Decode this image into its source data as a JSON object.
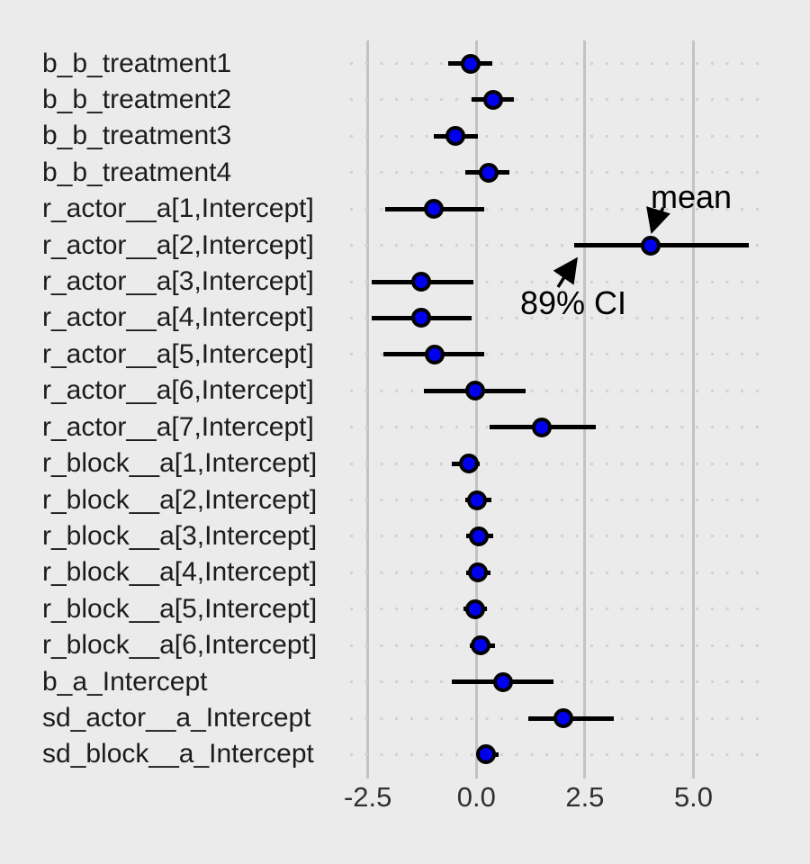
{
  "chart_data": {
    "type": "scatter",
    "subtype": "coefficient_forest_plot_with_intervals",
    "title": "",
    "xlabel": "",
    "ylabel": "",
    "xlim": [
      -3.0,
      7.0
    ],
    "x_tick_values": [
      -2.5,
      0.0,
      2.5,
      5.0
    ],
    "x_tick_labels": [
      "-2.5",
      "0.0",
      "2.5",
      "5.0"
    ],
    "grid": "vertical solid gridlines at ticks; dotted horizontal guide per row",
    "legend": "none",
    "ci_level": "89%",
    "point_estimate": "mean",
    "parameters": [
      {
        "name": "b_b_treatment1",
        "mean": -0.14,
        "lower": -0.64,
        "upper": 0.36
      },
      {
        "name": "b_b_treatment2",
        "mean": 0.39,
        "lower": -0.11,
        "upper": 0.86
      },
      {
        "name": "b_b_treatment3",
        "mean": -0.48,
        "lower": -0.98,
        "upper": 0.03
      },
      {
        "name": "b_b_treatment4",
        "mean": 0.29,
        "lower": -0.25,
        "upper": 0.76
      },
      {
        "name": "r_actor__a[1,Intercept]",
        "mean": -0.99,
        "lower": -2.1,
        "upper": 0.19
      },
      {
        "name": "r_actor__a[2,Intercept]",
        "mean": 4.02,
        "lower": 2.26,
        "upper": 6.27
      },
      {
        "name": "r_actor__a[3,Intercept]",
        "mean": -1.27,
        "lower": -2.42,
        "upper": -0.07
      },
      {
        "name": "r_actor__a[4,Intercept]",
        "mean": -1.27,
        "lower": -2.42,
        "upper": -0.11
      },
      {
        "name": "r_actor__a[5,Intercept]",
        "mean": -0.97,
        "lower": -2.14,
        "upper": 0.19
      },
      {
        "name": "r_actor__a[6,Intercept]",
        "mean": -0.02,
        "lower": -1.2,
        "upper": 1.14
      },
      {
        "name": "r_actor__a[7,Intercept]",
        "mean": 1.51,
        "lower": 0.3,
        "upper": 2.75
      },
      {
        "name": "r_block__a[1,Intercept]",
        "mean": -0.17,
        "lower": -0.57,
        "upper": 0.08
      },
      {
        "name": "r_block__a[2,Intercept]",
        "mean": 0.01,
        "lower": -0.26,
        "upper": 0.35
      },
      {
        "name": "r_block__a[3,Intercept]",
        "mean": 0.05,
        "lower": -0.23,
        "upper": 0.38
      },
      {
        "name": "r_block__a[4,Intercept]",
        "mean": 0.03,
        "lower": -0.23,
        "upper": 0.33
      },
      {
        "name": "r_block__a[5,Intercept]",
        "mean": -0.02,
        "lower": -0.3,
        "upper": 0.24
      },
      {
        "name": "r_block__a[6,Intercept]",
        "mean": 0.1,
        "lower": -0.16,
        "upper": 0.43
      },
      {
        "name": "b_a_Intercept",
        "mean": 0.62,
        "lower": -0.57,
        "upper": 1.78
      },
      {
        "name": "sd_actor__a_Intercept",
        "mean": 2.01,
        "lower": 1.19,
        "upper": 3.16
      },
      {
        "name": "sd_block__a_Intercept",
        "mean": 0.22,
        "lower": 0.04,
        "upper": 0.52
      }
    ],
    "annotations": [
      {
        "text": "mean",
        "points_to": "posterior mean point of r_actor__a[2,Intercept]"
      },
      {
        "text": "89% CI",
        "points_to": "lower endpoint of the 89% interval of r_actor__a[2,Intercept]"
      }
    ],
    "colors": {
      "background": "#EBEBEB",
      "gridline": "#C3C3C3",
      "row_dots": "#D2D2D2",
      "interval": "#000000",
      "point_fill": "#0000EE",
      "point_stroke": "#000000",
      "axis_text": "#303030",
      "label_text": "#1C1C1C",
      "annotation_text": "#000000"
    }
  }
}
